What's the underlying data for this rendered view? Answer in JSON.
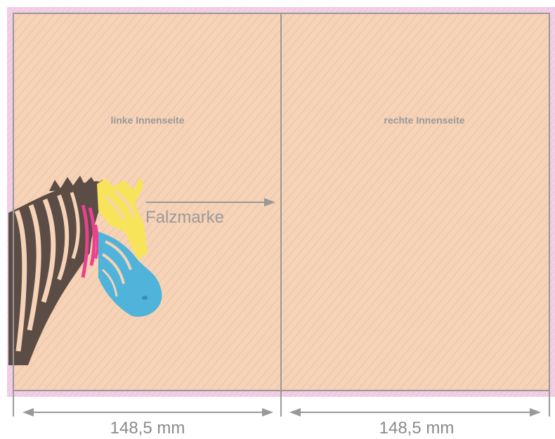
{
  "labels": {
    "left_page": "linke Innenseite",
    "right_page": "rechte Innenseite",
    "fold_mark": "Falzmarke"
  },
  "dimensions": {
    "left_width": "148,5 mm",
    "right_width": "148,5 mm"
  },
  "colors": {
    "page_fill": "#f6d2b6",
    "bleed": "#f1c8e4",
    "lines": "#999999",
    "zebra_dark": "#5b4c45",
    "zebra_cyan": "#4fb3da",
    "zebra_magenta": "#e8418e",
    "zebra_yellow": "#f7e45a"
  },
  "illustration": "zebra-head"
}
